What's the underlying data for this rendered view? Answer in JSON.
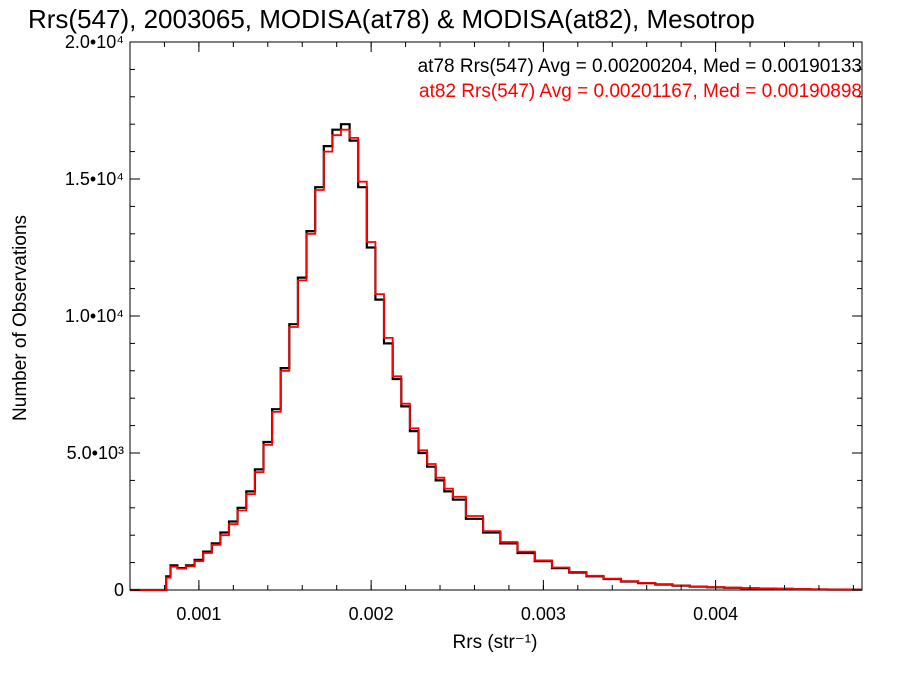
{
  "chart_data": {
    "type": "line",
    "title": "Rrs(547), 2003065, MODISA(at78) & MODISA(at82), Mesotrop",
    "xlabel": "Rrs (str⁻¹)",
    "ylabel": "Number of Observations",
    "xlim": [
      0.0006,
      0.00485
    ],
    "ylim": [
      0,
      20000
    ],
    "grid": false,
    "legend_position": "top-right",
    "x_ticks": [
      {
        "value": 0.001,
        "label": "0.001"
      },
      {
        "value": 0.002,
        "label": "0.002"
      },
      {
        "value": 0.003,
        "label": "0.003"
      },
      {
        "value": 0.004,
        "label": "0.004"
      }
    ],
    "y_ticks": [
      {
        "value": 0,
        "label": "0"
      },
      {
        "value": 5000,
        "label": "5.0•10³"
      },
      {
        "value": 10000,
        "label": "1.0•10⁴"
      },
      {
        "value": 15000,
        "label": "1.5•10⁴"
      },
      {
        "value": 20000,
        "label": "2.0•10⁴"
      }
    ],
    "annotations": [
      {
        "text": "at78 Rrs(547) Avg = 0.00200204, Med = 0.00190133",
        "color": "#000000"
      },
      {
        "text": "at82 Rrs(547) Avg = 0.00201167, Med = 0.00190898",
        "color": "#ff0000"
      }
    ],
    "series": [
      {
        "color": "#000000",
        "x": [
          0.0006,
          0.00075,
          0.0008,
          0.00082,
          0.00085,
          0.0009,
          0.00095,
          0.001,
          0.00105,
          0.0011,
          0.00115,
          0.0012,
          0.00125,
          0.0013,
          0.00135,
          0.0014,
          0.00145,
          0.0015,
          0.00155,
          0.0016,
          0.00165,
          0.0017,
          0.00175,
          0.0018,
          0.00185,
          0.0019,
          0.00195,
          0.002,
          0.00205,
          0.0021,
          0.00215,
          0.0022,
          0.00225,
          0.0023,
          0.00235,
          0.0024,
          0.00245,
          0.0025,
          0.0026,
          0.0027,
          0.0028,
          0.0029,
          0.003,
          0.0031,
          0.0032,
          0.0033,
          0.0034,
          0.0035,
          0.0036,
          0.0037,
          0.0038,
          0.0039,
          0.004,
          0.0041,
          0.0042,
          0.0043,
          0.0044,
          0.0045,
          0.0046,
          0.0047,
          0.0048,
          0.00485
        ],
        "y": [
          0,
          0,
          0,
          500,
          900,
          800,
          900,
          1100,
          1400,
          1700,
          2100,
          2500,
          3000,
          3600,
          4400,
          5400,
          6600,
          8100,
          9700,
          11400,
          13100,
          14700,
          16200,
          16800,
          17000,
          16400,
          14700,
          12500,
          10600,
          9000,
          7700,
          6700,
          5800,
          5000,
          4500,
          4000,
          3600,
          3300,
          2600,
          2100,
          1700,
          1350,
          1050,
          800,
          640,
          500,
          400,
          310,
          250,
          200,
          160,
          120,
          100,
          80,
          60,
          50,
          40,
          30,
          20,
          15,
          10,
          10
        ]
      },
      {
        "color": "#ff0000",
        "x": [
          0.0006,
          0.00075,
          0.0008,
          0.00082,
          0.00085,
          0.0009,
          0.00095,
          0.001,
          0.00105,
          0.0011,
          0.00115,
          0.0012,
          0.00125,
          0.0013,
          0.00135,
          0.0014,
          0.00145,
          0.0015,
          0.00155,
          0.0016,
          0.00165,
          0.0017,
          0.00175,
          0.0018,
          0.00185,
          0.0019,
          0.00195,
          0.002,
          0.00205,
          0.0021,
          0.00215,
          0.0022,
          0.00225,
          0.0023,
          0.00235,
          0.0024,
          0.00245,
          0.0025,
          0.0026,
          0.0027,
          0.0028,
          0.0029,
          0.003,
          0.0031,
          0.0032,
          0.0033,
          0.0034,
          0.0035,
          0.0036,
          0.0037,
          0.0038,
          0.0039,
          0.004,
          0.0041,
          0.0042,
          0.0043,
          0.0044,
          0.0045,
          0.0046,
          0.0047,
          0.0048,
          0.00485
        ],
        "y": [
          0,
          0,
          0,
          450,
          850,
          780,
          860,
          1050,
          1350,
          1650,
          2000,
          2400,
          2900,
          3500,
          4300,
          5300,
          6500,
          8000,
          9600,
          11300,
          13000,
          14600,
          16000,
          16600,
          16800,
          16500,
          14900,
          12700,
          10800,
          9200,
          7800,
          6800,
          5900,
          5100,
          4600,
          4100,
          3700,
          3400,
          2700,
          2150,
          1750,
          1400,
          1080,
          820,
          660,
          520,
          410,
          320,
          260,
          210,
          165,
          125,
          105,
          85,
          65,
          55,
          45,
          35,
          25,
          18,
          12,
          10
        ]
      }
    ]
  }
}
